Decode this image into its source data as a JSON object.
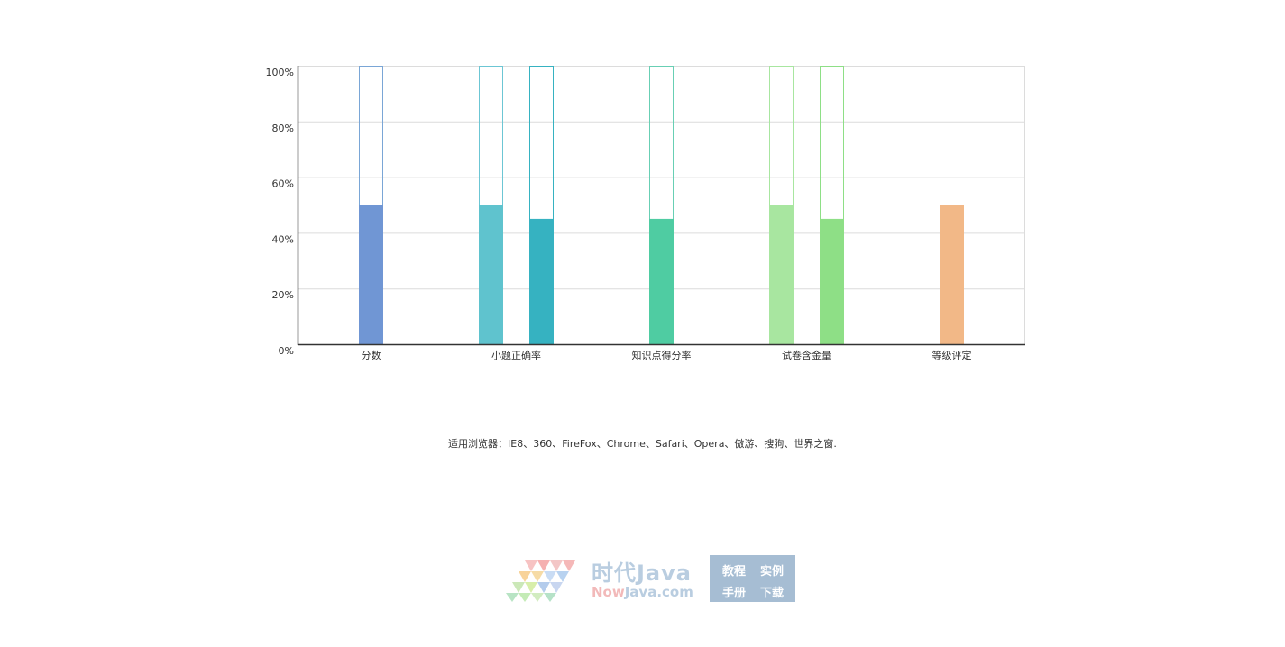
{
  "chart_data": {
    "type": "bar",
    "stacked_background": true,
    "categories": [
      "分数",
      "小题正确率",
      "知识点得分率",
      "试卷含金量",
      "等级评定"
    ],
    "ylim": [
      0,
      100
    ],
    "y_ticks": [
      "0%",
      "20%",
      "40%",
      "60%",
      "80%",
      "100%"
    ],
    "grid": true,
    "bars": [
      {
        "category": "分数",
        "value": 50,
        "color": "#7096d4",
        "outline": "#7aa6d6",
        "background": true
      },
      {
        "category": "小题正确率",
        "value": 50,
        "color": "#5fc3ce",
        "outline": "#6cc6d4",
        "background": true
      },
      {
        "category": "小题正确率",
        "value": 45,
        "color": "#36b2c1",
        "outline": "#36b2c1",
        "background": true
      },
      {
        "category": "知识点得分率",
        "value": 45,
        "color": "#4fcca2",
        "outline": "#68cfb4",
        "background": true
      },
      {
        "category": "试卷含金量",
        "value": 50,
        "color": "#a8e6a0",
        "outline": "#a8e6a0",
        "background": true
      },
      {
        "category": "试卷含金量",
        "value": 45,
        "color": "#8edf86",
        "outline": "#8edf86",
        "background": true
      },
      {
        "category": "等级评定",
        "value": 50,
        "color": "#f2b887",
        "outline": null,
        "background": false
      }
    ]
  },
  "footer": {
    "browser_note": "适用浏览器：IE8、360、FireFox、Chrome、Safari、Opera、傲游、搜狗、世界之窗."
  },
  "watermark": {
    "brand": "时代Java",
    "domain_now": "Now",
    "domain_rest": "Java.com",
    "box": [
      "教程",
      "实例",
      "手册",
      "下载"
    ]
  }
}
